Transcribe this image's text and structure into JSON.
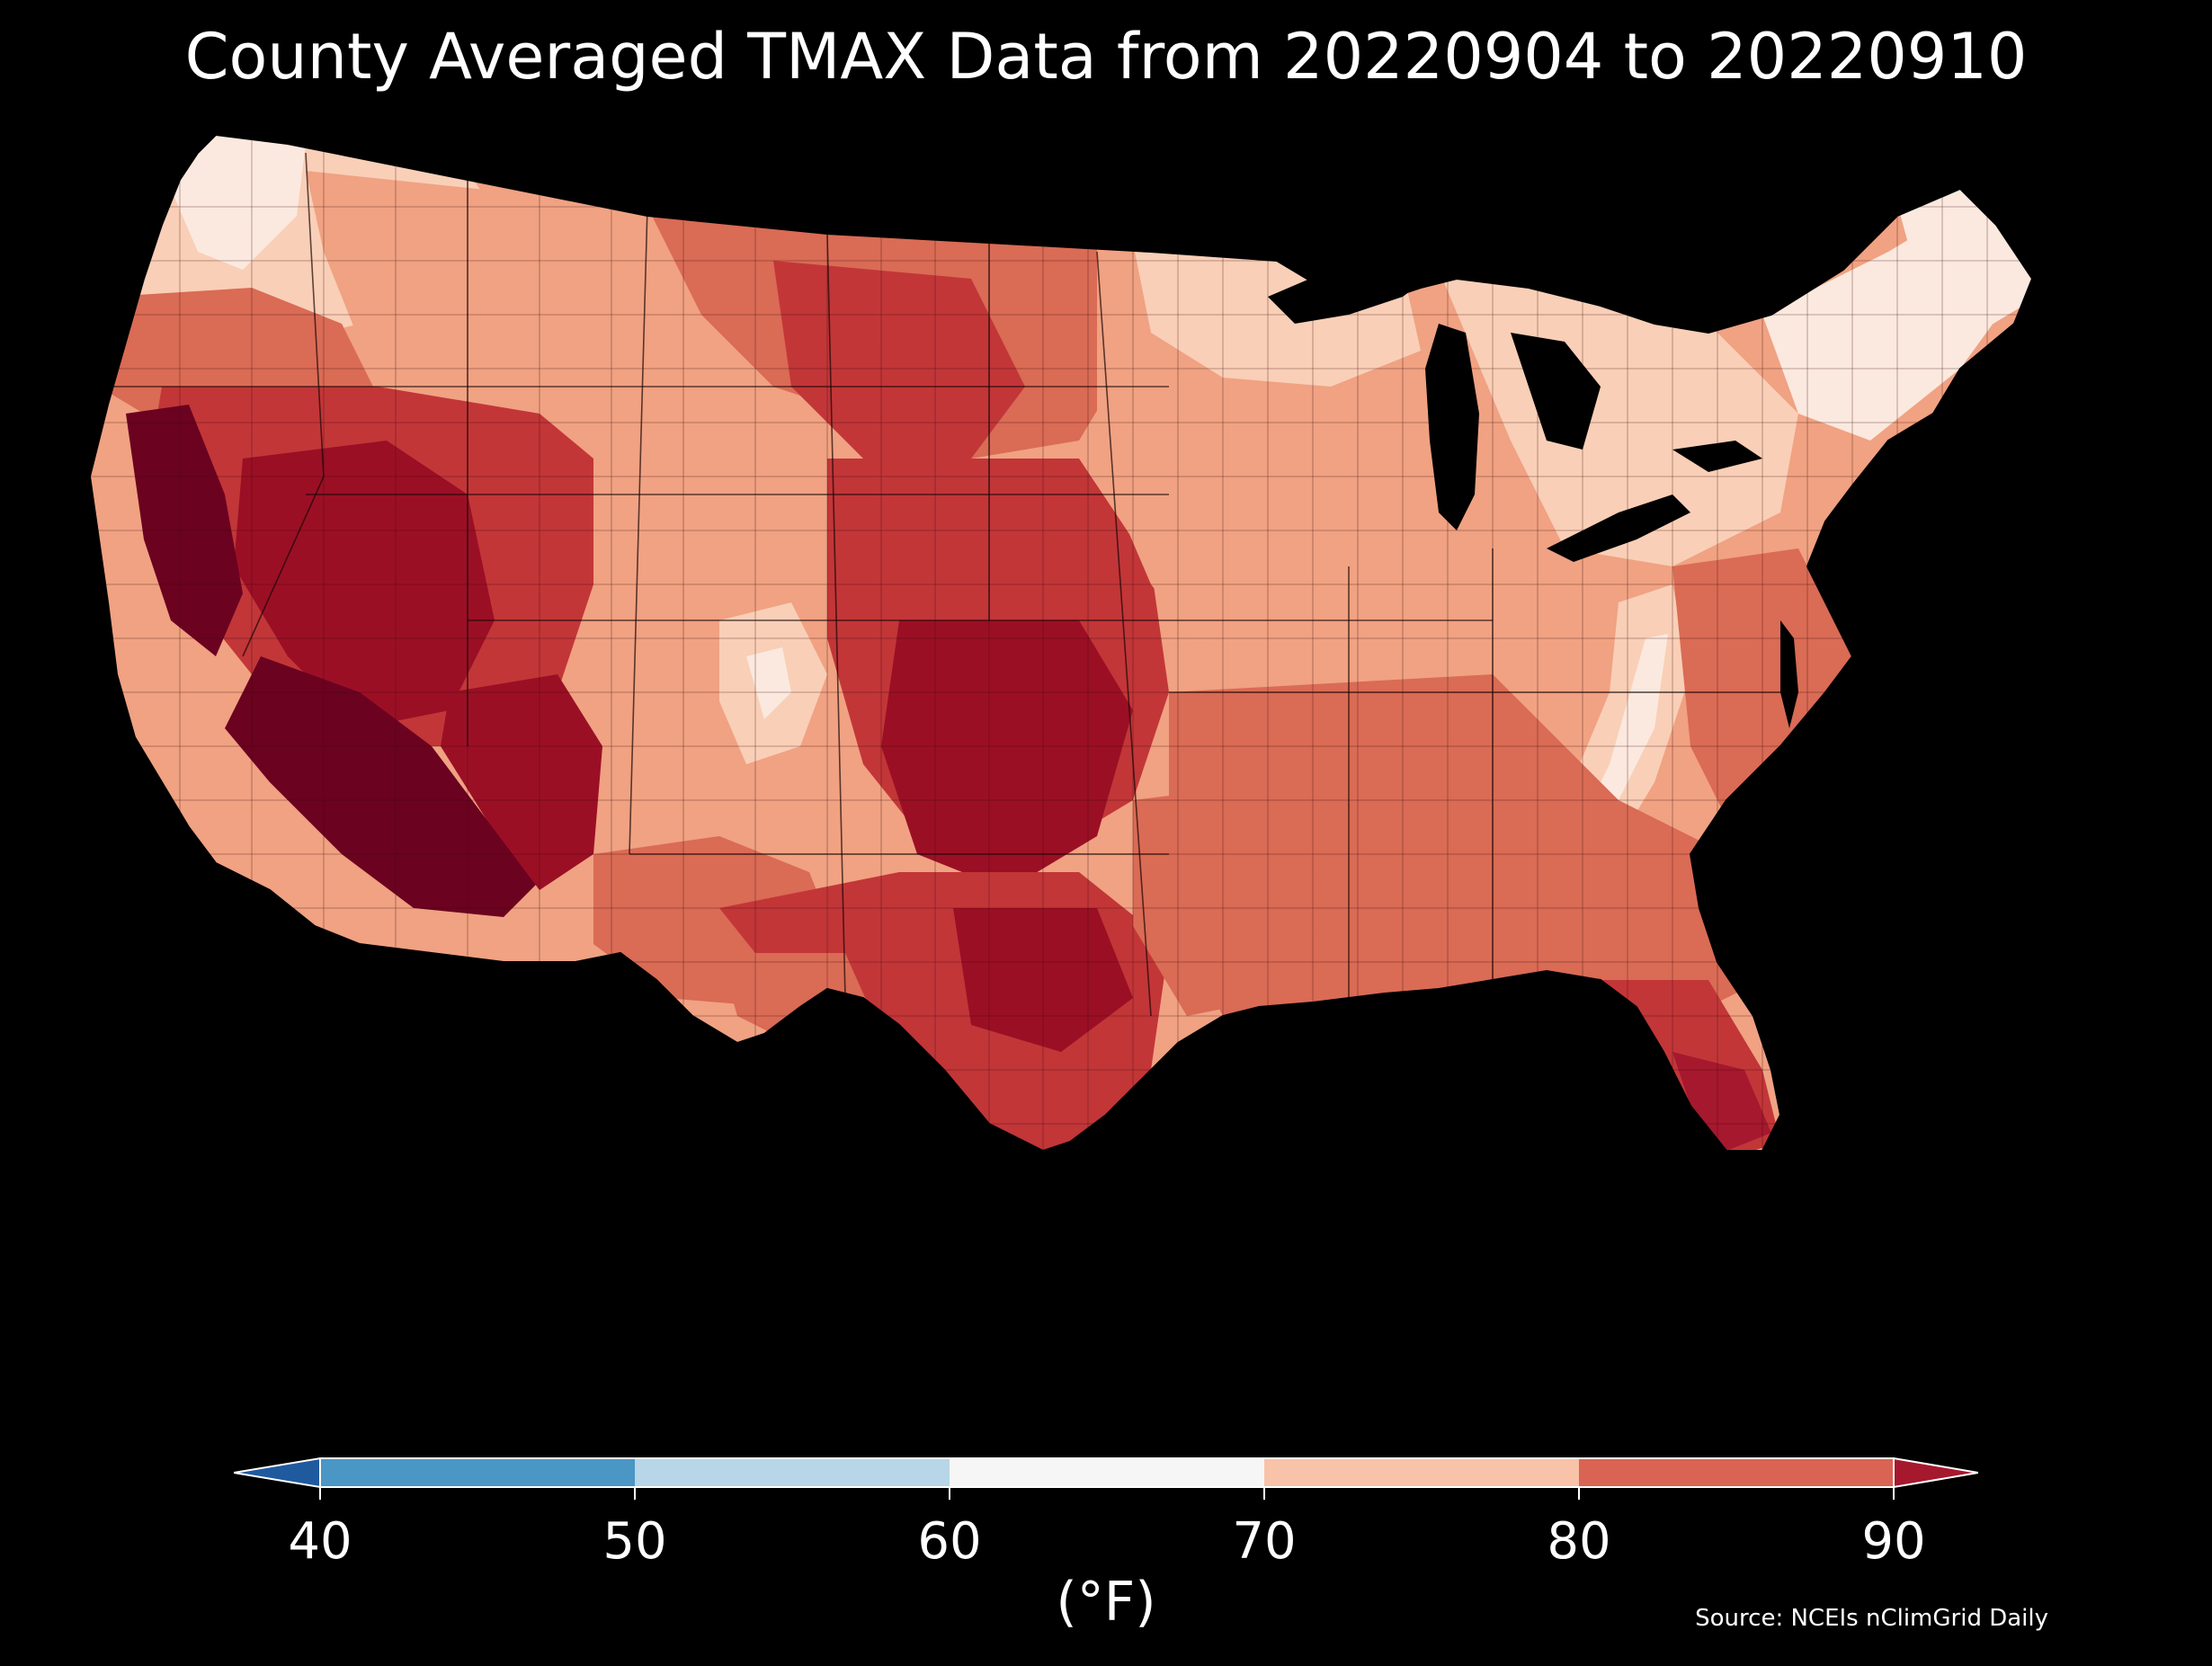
{
  "title": "County Averaged TMAX Data from 20220904 to 20220910",
  "colorbar": {
    "ticks": [
      "40",
      "50",
      "60",
      "70",
      "80",
      "90"
    ],
    "units": "(°F)",
    "colors": {
      "under": "#1f5a9e",
      "b40_50": "#4a96c5",
      "b50_60": "#b7d6e8",
      "b60_70": "#f6f6f6",
      "b70_80": "#f8c3a8",
      "b80_90": "#d96453",
      "over": "#a6182e"
    }
  },
  "source": "Source: NCEIs nClimGrid Daily",
  "map_colors": {
    "extreme": "#6b0220",
    "very_hot": "#9b0f25",
    "hot": "#c23638",
    "warm": "#da6b55",
    "mild": "#f0a282",
    "cool": "#f9cfb7",
    "cold": "#fbe9df",
    "border": "#2a0a0a"
  }
}
